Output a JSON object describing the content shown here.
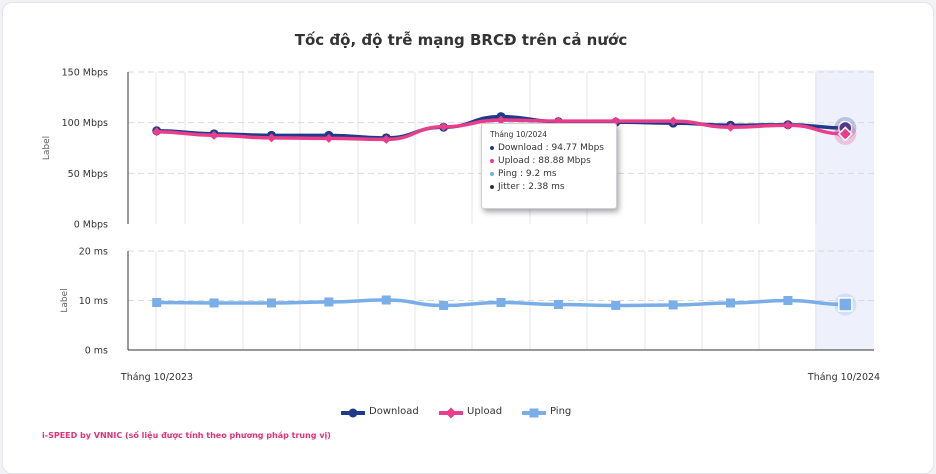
{
  "chart_title": "Tốc độ, độ trễ mạng BRCĐ trên cả nước",
  "footer_text": "i-SPEED by VNNIC (số liệu được tính theo phương pháp trung vị)",
  "x_axis": {
    "first_label": "Tháng 10/2023",
    "last_label": "Tháng 10/2024"
  },
  "tooltip": {
    "title": "Tháng 10/2024",
    "rows": [
      {
        "text": "Download : 94.77 Mbps",
        "color": "#1e3a8a"
      },
      {
        "text": "Upload : 88.88 Mbps",
        "color": "#e83e8c"
      },
      {
        "text": "Ping : 9.2 ms",
        "color": "#7aaee8"
      },
      {
        "text": "Jitter : 2.38 ms",
        "color": "#333333"
      }
    ]
  },
  "legend": [
    {
      "name": "Download",
      "color": "#1e3a8a",
      "marker": "circle"
    },
    {
      "name": "Upload",
      "color": "#e83e8c",
      "marker": "diamond"
    },
    {
      "name": "Ping",
      "color": "#7aaee8",
      "marker": "square"
    }
  ],
  "chart_data": [
    {
      "type": "line",
      "ylabel": "Label",
      "ylim": [
        0,
        150
      ],
      "yticks": [
        "0 Mbps",
        "50 Mbps",
        "100 Mbps",
        "150 Mbps"
      ],
      "ytick_values": [
        0,
        50,
        100,
        150
      ],
      "x_count": 13,
      "highlighted_index": 12,
      "series": [
        {
          "name": "Download",
          "color": "#1e3a8a",
          "marker": "circle",
          "values": [
            92,
            89,
            87.5,
            87.5,
            85,
            95.5,
            106,
            101,
            100.5,
            99.5,
            97.5,
            98,
            94.77
          ]
        },
        {
          "name": "Upload",
          "color": "#e83e8c",
          "marker": "diamond",
          "values": [
            91,
            87.5,
            85,
            84.5,
            83.5,
            96,
            102.5,
            101.5,
            101.5,
            101.5,
            95.5,
            97.5,
            88.88
          ]
        }
      ]
    },
    {
      "type": "line",
      "ylabel": "Label",
      "ylim": [
        0,
        20
      ],
      "yticks": [
        "0 ms",
        "10 ms",
        "20 ms"
      ],
      "ytick_values": [
        0,
        10,
        20
      ],
      "x_count": 13,
      "highlighted_index": 12,
      "series": [
        {
          "name": "Ping",
          "color": "#7aaee8",
          "marker": "square",
          "values": [
            9.6,
            9.5,
            9.5,
            9.7,
            10.1,
            9.0,
            9.6,
            9.2,
            9.0,
            9.1,
            9.5,
            10.0,
            9.2
          ]
        }
      ]
    }
  ]
}
